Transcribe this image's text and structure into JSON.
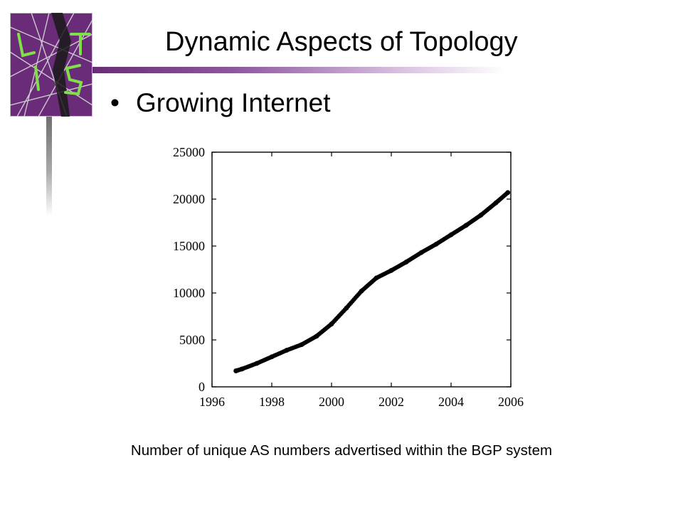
{
  "slide": {
    "title": "Dynamic Aspects of Topology",
    "bullet_symbol": "•",
    "bullet_text": "Growing Internet",
    "caption": "Number of unique AS numbers advertised within the BGP system"
  },
  "logo": {
    "letters": [
      "L",
      "T",
      "I",
      "S"
    ],
    "background": "#6a2c78",
    "letter_color": "#7fe04a"
  },
  "colors": {
    "accent": "#6a2c78",
    "text": "#000000"
  },
  "chart_data": {
    "type": "scatter",
    "title": "",
    "xlabel": "",
    "ylabel": "",
    "xlim": [
      1996,
      2006
    ],
    "ylim": [
      0,
      25000
    ],
    "x_ticks": [
      "1996",
      "1998",
      "2000",
      "2002",
      "2004",
      "2006"
    ],
    "y_ticks": [
      "0",
      "5000",
      "10000",
      "15000",
      "20000",
      "25000"
    ],
    "grid": false,
    "series": [
      {
        "x": [
          1996.8,
          1997.0,
          1997.5,
          1998.0,
          1998.5,
          1999.0,
          1999.5,
          2000.0,
          2000.5,
          2001.0,
          2001.5,
          2002.0,
          2002.5,
          2003.0,
          2003.5,
          2004.0,
          2004.5,
          2005.0,
          2005.5,
          2005.9
        ],
        "values": [
          1700,
          1900,
          2500,
          3200,
          3900,
          4500,
          5400,
          6700,
          8400,
          10200,
          11600,
          12400,
          13300,
          14300,
          15200,
          16200,
          17200,
          18300,
          19600,
          20700
        ]
      }
    ]
  }
}
